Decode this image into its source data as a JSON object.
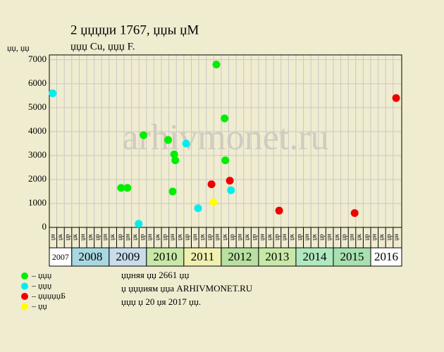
{
  "chart_data": {
    "type": "scatter",
    "title": "2 џџџџи 1767, џџы џМ",
    "subtitle": "џџџ Cu, џџџ F.",
    "y_label": "џџ, џџ",
    "watermark": "arhivmonet.ru",
    "xlim": [
      2007.4,
      2016.83
    ],
    "ylim": [
      0,
      7200
    ],
    "yticks": [
      0,
      1000,
      2000,
      3000,
      4000,
      5000,
      6000,
      7000
    ],
    "grid": true,
    "columns_per_year": 5,
    "column_labels": [
      "џя",
      "џк",
      "џр",
      "џк",
      "џн",
      "џк",
      "џр",
      "џн",
      "џк",
      "џр",
      "џн",
      "џк",
      "џр",
      "џн",
      "џк",
      "џр",
      "џн",
      "џк",
      "џр",
      "џн",
      "џк",
      "џр",
      "џн",
      "џк",
      "џр",
      "џн",
      "џк",
      "џр",
      "џн",
      "џк",
      "џр",
      "џн",
      "џк",
      "џр",
      "џн",
      "џк",
      "џр",
      "џн",
      "џк",
      "џр",
      "џн",
      "џк",
      "џр",
      "џн",
      "џк",
      "џр",
      "џн"
    ],
    "years": [
      2007,
      2008,
      2009,
      2010,
      2011,
      2012,
      2013,
      2014,
      2015,
      2016
    ],
    "year_colors": [
      "#ffffff",
      "#a8d8e0",
      "#c8dcec",
      "#c8e8a8",
      "#f0f0b0",
      "#b8e0a0",
      "#c8e8a8",
      "#b0e8c0",
      "#a8e0b0",
      "#ffffff"
    ],
    "series": [
      {
        "name": "– џџџ",
        "color": "#00ee00",
        "x": [
          2009.32,
          2009.49,
          2009.92,
          2010.58,
          2010.74,
          2010.77,
          2010.7,
          2011.87,
          2012.09,
          2012.11
        ],
        "values": [
          1650,
          1650,
          3850,
          3650,
          3050,
          2800,
          1500,
          6800,
          4550,
          2800
        ]
      },
      {
        "name": "– џџџ",
        "color": "#00eeee",
        "x": [
          2007.49,
          2009.79,
          2011.06,
          2011.38,
          2012.26
        ],
        "values": [
          5600,
          150,
          3500,
          800,
          1550
        ]
      },
      {
        "name": "– џџџџџБ",
        "color": "#ee0000",
        "x": [
          2011.74,
          2012.23,
          2013.55,
          2015.57,
          2016.68
        ],
        "values": [
          1800,
          1950,
          700,
          600,
          5400
        ]
      },
      {
        "name": "– џџ",
        "color": "#ffff00",
        "x": [
          2011.79
        ],
        "values": [
          1050
        ]
      }
    ],
    "notes": [
      "џџняя џџ 2661 џџ",
      "џ џџџиям џџа ARHIVMONET.RU",
      "џџџ џ 20 џя 2017 џџ."
    ]
  }
}
